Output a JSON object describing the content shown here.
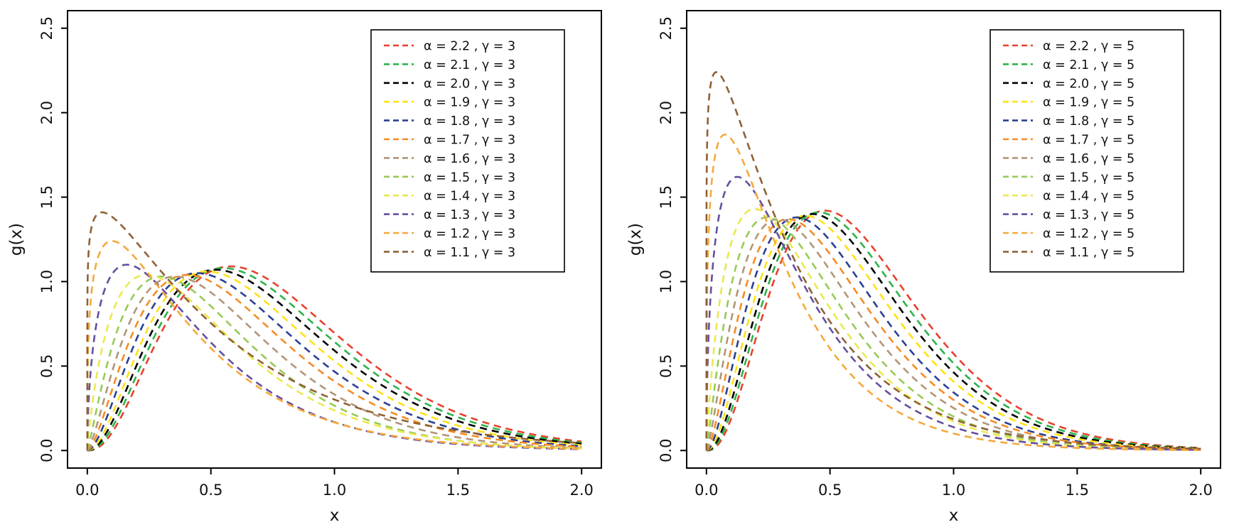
{
  "figure": {
    "background": "#ffffff",
    "axis_color": "#000000",
    "text_color": "#111111"
  },
  "chart_data": [
    {
      "type": "line",
      "panel": "left",
      "title": "",
      "xlabel": "x",
      "ylabel": "g(x)",
      "xlim": [
        0,
        2
      ],
      "ylim": [
        0,
        2.5
      ],
      "xticks": [
        0,
        0.5,
        1,
        1.5,
        2
      ],
      "yticks": [
        0,
        0.5,
        1,
        1.5,
        2,
        2.5
      ],
      "xtick_labels": [
        "0.0",
        "0.5",
        "1.0",
        "1.5",
        "2.0"
      ],
      "ytick_labels": [
        "0.0",
        "0.5",
        "1.0",
        "1.5",
        "2.0",
        "2.5"
      ],
      "grid": false,
      "gamma": 3,
      "legend_position": "top-right",
      "curve_model": "g(x) = peak * (x/mode)^shape * exp(shape*(1 - x/mode))",
      "series": [
        {
          "alpha": 2.2,
          "gamma": 3,
          "label": "α = 2.2 , γ = 3",
          "color": "#e8412c",
          "mode": 0.58,
          "peak": 1.09,
          "shape": 2.5
        },
        {
          "alpha": 2.1,
          "gamma": 3,
          "label": "α = 2.1 , γ = 3",
          "color": "#2db34a",
          "mode": 0.55,
          "peak": 1.08,
          "shape": 2.35
        },
        {
          "alpha": 2.0,
          "gamma": 3,
          "label": "α = 2.0 , γ = 3",
          "color": "#000000",
          "mode": 0.52,
          "peak": 1.07,
          "shape": 2.2
        },
        {
          "alpha": 1.9,
          "gamma": 3,
          "label": "α = 1.9 , γ = 3",
          "color": "#ffe115",
          "mode": 0.485,
          "peak": 1.06,
          "shape": 2.05
        },
        {
          "alpha": 1.8,
          "gamma": 3,
          "label": "α = 1.8 , γ = 3",
          "color": "#2b3f93",
          "mode": 0.445,
          "peak": 1.05,
          "shape": 1.85
        },
        {
          "alpha": 1.7,
          "gamma": 3,
          "label": "α = 1.7 , γ = 3",
          "color": "#f68b22",
          "mode": 0.405,
          "peak": 1.04,
          "shape": 1.65
        },
        {
          "alpha": 1.6,
          "gamma": 3,
          "label": "α = 1.6 , γ = 3",
          "color": "#b29578",
          "mode": 0.355,
          "peak": 1.03,
          "shape": 1.45
        },
        {
          "alpha": 1.5,
          "gamma": 3,
          "label": "α = 1.5 , γ = 3",
          "color": "#97ca56",
          "mode": 0.3,
          "peak": 1.03,
          "shape": 1.2
        },
        {
          "alpha": 1.4,
          "gamma": 3,
          "label": "α = 1.4 , γ = 3",
          "color": "#e9e94f",
          "mode": 0.24,
          "peak": 1.04,
          "shape": 0.85
        },
        {
          "alpha": 1.3,
          "gamma": 3,
          "label": "α = 1.3 , γ = 3",
          "color": "#6450a0",
          "mode": 0.16,
          "peak": 1.1,
          "shape": 0.55
        },
        {
          "alpha": 1.2,
          "gamma": 3,
          "label": "α = 1.2 , γ = 3",
          "color": "#f7a83b",
          "mode": 0.1,
          "peak": 1.24,
          "shape": 0.3
        },
        {
          "alpha": 1.1,
          "gamma": 3,
          "label": "α = 1.1 , γ = 3",
          "color": "#8f6136",
          "mode": 0.06,
          "peak": 1.41,
          "shape": 0.12
        }
      ]
    },
    {
      "type": "line",
      "panel": "right",
      "title": "",
      "xlabel": "x",
      "ylabel": "g(x)",
      "xlim": [
        0,
        2
      ],
      "ylim": [
        0,
        2.5
      ],
      "xticks": [
        0,
        0.5,
        1,
        1.5,
        2
      ],
      "yticks": [
        0,
        0.5,
        1,
        1.5,
        2,
        2.5
      ],
      "xtick_labels": [
        "0.0",
        "0.5",
        "1.0",
        "1.5",
        "2.0"
      ],
      "ytick_labels": [
        "0.0",
        "0.5",
        "1.0",
        "1.5",
        "2.0",
        "2.5"
      ],
      "grid": false,
      "gamma": 5,
      "legend_position": "top-right",
      "curve_model": "g(x) = peak * (x/mode)^shape * exp(shape*(1 - x/mode))",
      "series": [
        {
          "alpha": 2.2,
          "gamma": 5,
          "label": "α = 2.2 , γ = 5",
          "color": "#e8412c",
          "mode": 0.48,
          "peak": 1.42,
          "shape": 2.6
        },
        {
          "alpha": 2.1,
          "gamma": 5,
          "label": "α = 2.1 , γ = 5",
          "color": "#2db34a",
          "mode": 0.455,
          "peak": 1.41,
          "shape": 2.45
        },
        {
          "alpha": 2.0,
          "gamma": 5,
          "label": "α = 2.0 , γ = 5",
          "color": "#000000",
          "mode": 0.43,
          "peak": 1.4,
          "shape": 2.3
        },
        {
          "alpha": 1.9,
          "gamma": 5,
          "label": "α = 1.9 , γ = 5",
          "color": "#ffe115",
          "mode": 0.4,
          "peak": 1.39,
          "shape": 2.1
        },
        {
          "alpha": 1.8,
          "gamma": 5,
          "label": "α = 1.8 , γ = 5",
          "color": "#2b3f93",
          "mode": 0.365,
          "peak": 1.38,
          "shape": 1.9
        },
        {
          "alpha": 1.7,
          "gamma": 5,
          "label": "α = 1.7 , γ = 5",
          "color": "#f68b22",
          "mode": 0.33,
          "peak": 1.37,
          "shape": 1.65
        },
        {
          "alpha": 1.6,
          "gamma": 5,
          "label": "α = 1.6 , γ = 5",
          "color": "#b29578",
          "mode": 0.29,
          "peak": 1.37,
          "shape": 1.4
        },
        {
          "alpha": 1.5,
          "gamma": 5,
          "label": "α = 1.5 , γ = 5",
          "color": "#97ca56",
          "mode": 0.245,
          "peak": 1.38,
          "shape": 1.15
        },
        {
          "alpha": 1.4,
          "gamma": 5,
          "label": "α = 1.4 , γ = 5",
          "color": "#e9e94f",
          "mode": 0.195,
          "peak": 1.43,
          "shape": 0.85
        },
        {
          "alpha": 1.3,
          "gamma": 5,
          "label": "α = 1.3 , γ = 5",
          "color": "#6450a0",
          "mode": 0.125,
          "peak": 1.62,
          "shape": 0.5
        },
        {
          "alpha": 1.2,
          "gamma": 5,
          "label": "α = 1.2 , γ = 5",
          "color": "#f7a83b",
          "mode": 0.075,
          "peak": 1.87,
          "shape": 0.3
        },
        {
          "alpha": 1.1,
          "gamma": 5,
          "label": "α = 1.1 , γ = 5",
          "color": "#8f6136",
          "mode": 0.04,
          "peak": 2.24,
          "shape": 0.12
        }
      ]
    }
  ]
}
